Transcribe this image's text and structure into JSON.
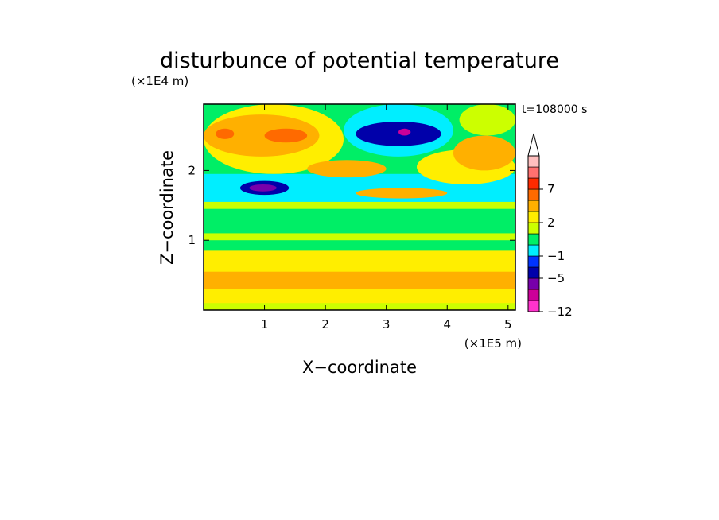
{
  "chart_data": {
    "type": "heatmap",
    "title": "disturbunce of potential temperature",
    "time_label": "t=108000 s",
    "xlabel": "X−coordinate",
    "ylabel": "Z−coordinate",
    "x_unit": "(×1E5 m)",
    "y_unit": "(×1E4 m)",
    "xlim": [
      0,
      5.12
    ],
    "ylim": [
      0,
      2.95
    ],
    "x_ticks": [
      1,
      2,
      3,
      4,
      5
    ],
    "x_tick_labels": [
      "1",
      "2",
      "3",
      "4",
      "5"
    ],
    "y_ticks": [
      1,
      2
    ],
    "y_tick_labels": [
      "1",
      "2"
    ],
    "colorbar": {
      "levels": [
        -12,
        -9,
        -7,
        -5,
        -3,
        -1,
        0,
        1,
        2,
        3,
        5,
        7,
        9,
        11
      ],
      "colors": [
        "#ff33cc",
        "#cc0099",
        "#7700aa",
        "#0000aa",
        "#0033ff",
        "#00eeff",
        "#00ee66",
        "#ccff00",
        "#ffee00",
        "#ffb000",
        "#ff6a00",
        "#ff2a00",
        "#ff7070",
        "#ffbfbf"
      ],
      "extend": "max",
      "tick_labels": [
        "7",
        "2",
        "−1",
        "−5",
        "−12"
      ],
      "tick_values": [
        7,
        2,
        -1,
        -5,
        -12
      ]
    },
    "field_description": "Temperature disturbance field: warm layers near surface and aloft (~2.3-2.7), cold band (~1.3-1.9), strong cold anomaly near x=3-4, z=2.4-2.6",
    "regions": [
      {
        "x": [
          0,
          5.12
        ],
        "z": [
          0,
          2.95
        ],
        "value": 0.5
      },
      {
        "x": [
          0,
          5.12
        ],
        "z": [
          0,
          0.12
        ],
        "value": 1.5
      },
      {
        "x": [
          0,
          5.12
        ],
        "z": [
          0.1,
          0.9
        ],
        "value": 2.5
      },
      {
        "x": [
          0,
          5.12
        ],
        "z": [
          0.3,
          0.55
        ],
        "value": 4
      },
      {
        "x": [
          0,
          5.12
        ],
        "z": [
          0.85,
          1.4
        ],
        "value": 0.5
      },
      {
        "x": [
          0,
          5.12
        ],
        "z": [
          1.0,
          1.1
        ],
        "value": 1.5
      },
      {
        "x": [
          0,
          5.12
        ],
        "z": [
          1.45,
          1.6
        ],
        "value": 1.5
      },
      {
        "x": [
          0,
          5.12
        ],
        "z": [
          1.55,
          1.95
        ],
        "value": -0.5
      },
      {
        "x": [
          0,
          2.3
        ],
        "z": [
          1.95,
          2.95
        ],
        "value": 2.5
      },
      {
        "x": [
          0,
          1.9
        ],
        "z": [
          2.2,
          2.8
        ],
        "value": 4
      },
      {
        "x": [
          0.2,
          0.5
        ],
        "z": [
          2.45,
          2.6
        ],
        "value": 6
      },
      {
        "x": [
          1.0,
          1.7
        ],
        "z": [
          2.4,
          2.6
        ],
        "value": 6
      },
      {
        "x": [
          0.6,
          1.4
        ],
        "z": [
          1.65,
          1.85
        ],
        "value": -4
      },
      {
        "x": [
          0.75,
          1.2
        ],
        "z": [
          1.7,
          1.8
        ],
        "value": -6
      },
      {
        "x": [
          1.7,
          3.0
        ],
        "z": [
          1.9,
          2.15
        ],
        "value": 4
      },
      {
        "x": [
          2.3,
          4.1
        ],
        "z": [
          2.2,
          2.95
        ],
        "value": -0.5
      },
      {
        "x": [
          2.5,
          3.9
        ],
        "z": [
          2.35,
          2.7
        ],
        "value": -4
      },
      {
        "x": [
          3.2,
          3.4
        ],
        "z": [
          2.5,
          2.6
        ],
        "value": -8
      },
      {
        "x": [
          2.5,
          4.0
        ],
        "z": [
          1.6,
          1.75
        ],
        "value": 4
      },
      {
        "x": [
          3.5,
          5.12
        ],
        "z": [
          1.8,
          2.3
        ],
        "value": 2.5
      },
      {
        "x": [
          4.1,
          5.12
        ],
        "z": [
          2.0,
          2.5
        ],
        "value": 4
      },
      {
        "x": [
          4.2,
          5.12
        ],
        "z": [
          2.5,
          2.95
        ],
        "value": 1.5
      }
    ]
  }
}
